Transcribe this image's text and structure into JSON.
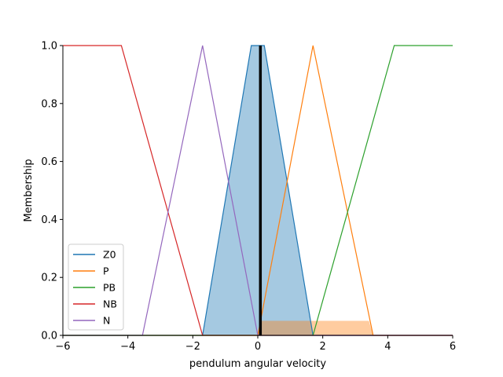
{
  "chart_data": {
    "type": "line",
    "xlabel": "pendulum angular velocity",
    "ylabel": "Membership",
    "xlim": [
      -6,
      6
    ],
    "ylim": [
      0,
      1.0
    ],
    "xticks": [
      -6,
      -4,
      -2,
      0,
      2,
      4,
      6
    ],
    "yticks": [
      0.0,
      0.2,
      0.4,
      0.6,
      0.8,
      1.0
    ],
    "xtick_labels": [
      "−6",
      "−4",
      "−2",
      "0",
      "2",
      "4",
      "6"
    ],
    "ytick_labels": [
      "0.0",
      "0.2",
      "0.4",
      "0.6",
      "0.8",
      "1.0"
    ],
    "legend_position": "lower-left",
    "series": [
      {
        "name": "Z0",
        "color": "#1f77b4",
        "x": [
          -6,
          -1.7,
          -0.2,
          0.2,
          1.7,
          6
        ],
        "y": [
          0,
          0,
          1,
          1,
          0,
          0
        ]
      },
      {
        "name": "P",
        "color": "#ff7f0e",
        "x": [
          -6,
          0,
          1.7,
          3.55,
          6
        ],
        "y": [
          0,
          0,
          1,
          0,
          0
        ]
      },
      {
        "name": "PB",
        "color": "#2ca02c",
        "x": [
          -6,
          1.7,
          4.2,
          6
        ],
        "y": [
          0,
          0,
          1,
          1
        ]
      },
      {
        "name": "NB",
        "color": "#d62728",
        "x": [
          -6,
          -4.2,
          -1.7,
          6
        ],
        "y": [
          1,
          1,
          0,
          0
        ]
      },
      {
        "name": "N",
        "color": "#9467bd",
        "x": [
          -6,
          -3.55,
          -1.7,
          0,
          6
        ],
        "y": [
          0,
          0,
          1,
          0,
          0
        ]
      }
    ],
    "filled_regions": [
      {
        "name": "Z0 activation",
        "color": "#1f77b4",
        "opacity": 0.4,
        "x": [
          -1.7,
          -0.2,
          0.2,
          1.7
        ],
        "y": [
          0,
          1,
          1,
          0
        ]
      },
      {
        "name": "P activation",
        "color": "#ff7f0e",
        "opacity": 0.4,
        "x": [
          0,
          0.08,
          3.42,
          3.55
        ],
        "y": [
          0,
          0.05,
          0.05,
          0
        ]
      }
    ],
    "marker_line": {
      "x": 0.08,
      "y_from": 0,
      "y_to": 1.0,
      "color": "#000000"
    }
  }
}
